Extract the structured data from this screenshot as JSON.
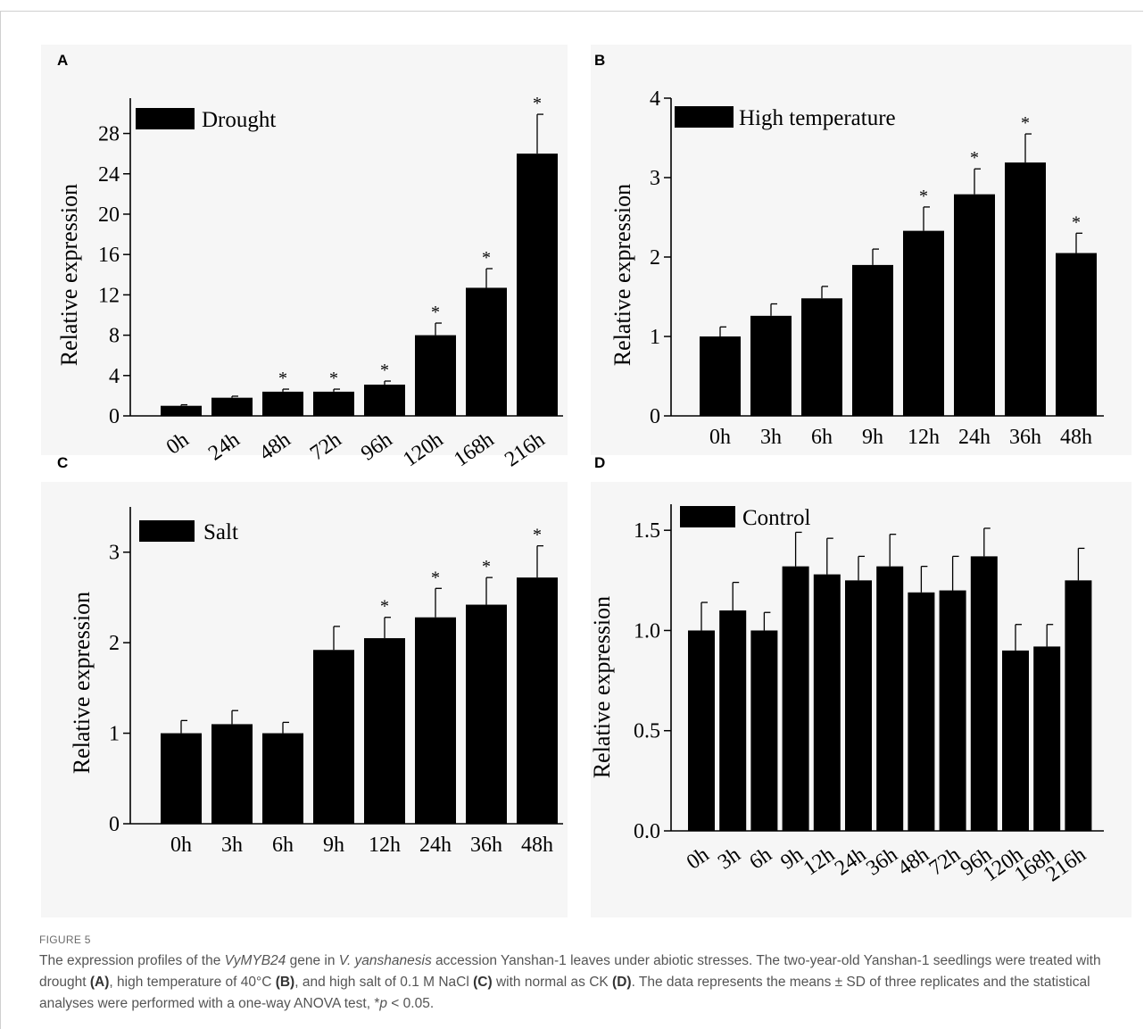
{
  "caption": {
    "figure_label": "FIGURE 5",
    "parts": [
      {
        "t": "The expression profiles of the "
      },
      {
        "t": "VyMYB24",
        "i": true
      },
      {
        "t": " gene in "
      },
      {
        "t": "V. yanshanesis",
        "i": true
      },
      {
        "t": " accession Yanshan-1 leaves under abiotic stresses. The two-year-old Yanshan-1 seedlings were treated with drought "
      },
      {
        "t": "(A)",
        "b": true
      },
      {
        "t": ", high temperature of 40°C "
      },
      {
        "t": "(B)",
        "b": true
      },
      {
        "t": ", and high salt of 0.1 M NaCl "
      },
      {
        "t": "(C)",
        "b": true
      },
      {
        "t": " with normal as CK "
      },
      {
        "t": "(D)",
        "b": true
      },
      {
        "t": ". The data represents the means ± SD of three replicates and the statistical analyses were performed with a one-way ANOVA test, *"
      },
      {
        "t": "p",
        "i": true
      },
      {
        "t": " < 0.05."
      }
    ]
  },
  "chart_data": [
    {
      "panel": "A",
      "type": "bar",
      "legend": "Drought",
      "legend_position": "top-left",
      "ylabel": "Relative expression",
      "ylim": [
        0,
        30
      ],
      "yticks": [
        "0",
        "4",
        "8",
        "12",
        "16",
        "20",
        "24",
        "28"
      ],
      "tick_label_rotation": "diagonal",
      "categories": [
        "0h",
        "24h",
        "48h",
        "72h",
        "96h",
        "120h",
        "168h",
        "216h"
      ],
      "values": [
        1.0,
        1.8,
        2.4,
        2.4,
        3.1,
        8.0,
        12.7,
        26.0
      ],
      "errors": [
        0.1,
        0.15,
        0.25,
        0.25,
        0.35,
        1.2,
        1.9,
        3.9
      ],
      "significant": [
        false,
        false,
        true,
        true,
        true,
        true,
        true,
        true
      ],
      "significance_marker": "*",
      "bar_color": "#000000"
    },
    {
      "panel": "B",
      "type": "bar",
      "legend": "High temperature",
      "legend_position": "top-left",
      "ylabel": "Relative expression",
      "ylim": [
        0,
        4
      ],
      "yticks": [
        "0",
        "1",
        "2",
        "3",
        "4"
      ],
      "categories": [
        "0h",
        "3h",
        "6h",
        "9h",
        "12h",
        "24h",
        "36h",
        "48h"
      ],
      "values": [
        1.0,
        1.26,
        1.48,
        1.9,
        2.33,
        2.79,
        3.19,
        2.05
      ],
      "errors": [
        0.12,
        0.15,
        0.15,
        0.2,
        0.3,
        0.32,
        0.36,
        0.25
      ],
      "significant": [
        false,
        false,
        false,
        false,
        true,
        true,
        true,
        true
      ],
      "significance_marker": "*",
      "bar_color": "#000000"
    },
    {
      "panel": "C",
      "type": "bar",
      "legend": "Salt",
      "legend_position": "top-left",
      "ylabel": "Relative expression",
      "ylim": [
        0,
        3.5
      ],
      "yticks": [
        "0",
        "1",
        "2",
        "3"
      ],
      "categories": [
        "0h",
        "3h",
        "6h",
        "9h",
        "12h",
        "24h",
        "36h",
        "48h"
      ],
      "values": [
        1.0,
        1.1,
        1.0,
        1.92,
        2.05,
        2.28,
        2.42,
        2.72
      ],
      "errors": [
        0.14,
        0.15,
        0.12,
        0.26,
        0.23,
        0.32,
        0.3,
        0.35
      ],
      "significant": [
        false,
        false,
        false,
        false,
        true,
        true,
        true,
        true
      ],
      "significance_marker": "*",
      "bar_color": "#000000"
    },
    {
      "panel": "D",
      "type": "bar",
      "legend": "Control",
      "legend_position": "top-left",
      "ylabel": "Relative expression",
      "ylim": [
        0,
        1.6
      ],
      "yticks": [
        "0.0",
        "0.5",
        "1.0",
        "1.5"
      ],
      "tick_label_rotation": "diagonal",
      "categories": [
        "0h",
        "3h",
        "6h",
        "9h",
        "12h",
        "24h",
        "36h",
        "48h",
        "72h",
        "96h",
        "120h",
        "168h",
        "216h"
      ],
      "values": [
        1.0,
        1.1,
        1.0,
        1.32,
        1.28,
        1.25,
        1.32,
        1.19,
        1.2,
        1.37,
        0.9,
        0.92,
        1.25
      ],
      "errors": [
        0.14,
        0.14,
        0.09,
        0.17,
        0.18,
        0.12,
        0.16,
        0.13,
        0.17,
        0.14,
        0.13,
        0.11,
        0.16
      ],
      "significant": [
        false,
        false,
        false,
        false,
        false,
        false,
        false,
        false,
        false,
        false,
        false,
        false,
        false
      ],
      "significance_marker": "*",
      "bar_color": "#000000"
    }
  ]
}
